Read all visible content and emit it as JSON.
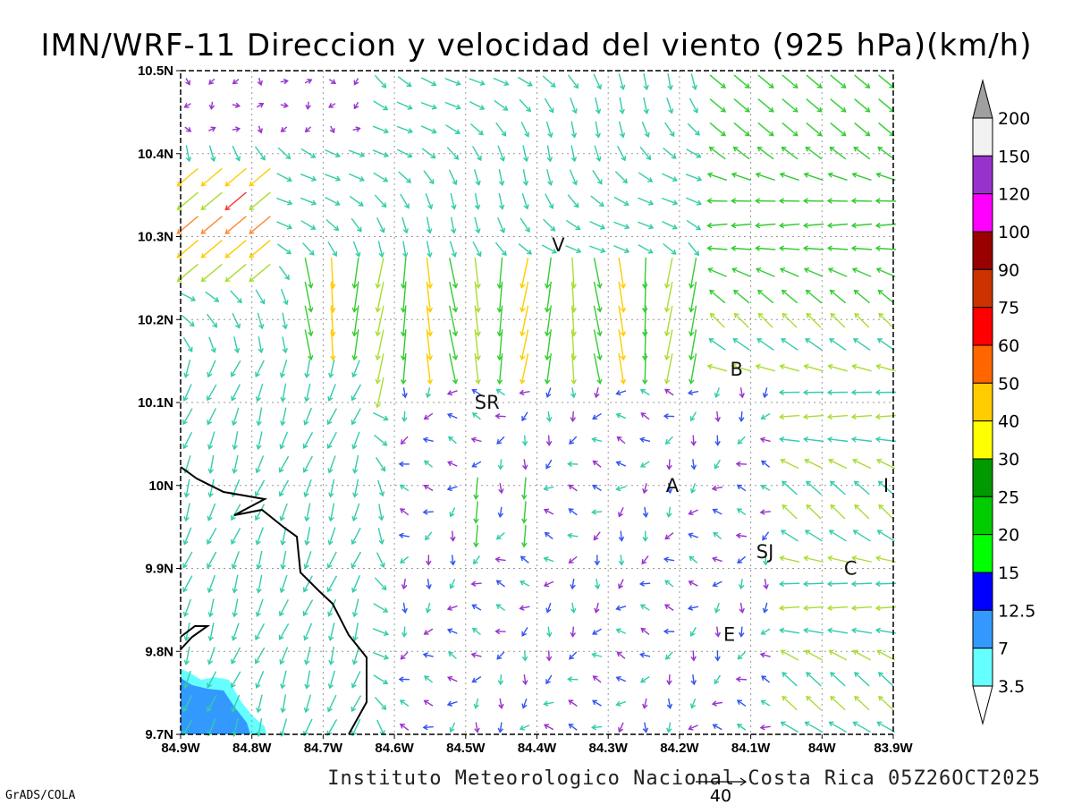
{
  "title": "IMN/WRF-11 Direccion y velocidad del viento (925 hPa)(km/h)",
  "footer": "Instituto Meteorologico Nacional Costa Rica 05Z26OCT2025",
  "credit": "GrADS/COLA",
  "reference_vector": {
    "label": "40",
    "speed": 40
  },
  "map": {
    "lon_range": [
      -84.9,
      -83.9
    ],
    "lat_range": [
      9.7,
      10.5
    ],
    "lon_ticks": [
      "84.9W",
      "84.8W",
      "84.7W",
      "84.6W",
      "84.5W",
      "84.4W",
      "84.3W",
      "84.2W",
      "84.1W",
      "84W",
      "83.9W"
    ],
    "lat_ticks": [
      "9.7N",
      "9.8N",
      "9.9N",
      "10N",
      "10.1N",
      "10.2N",
      "10.3N",
      "10.4N",
      "10.5N"
    ],
    "grid": "dotted",
    "cities": [
      {
        "label": "V",
        "lon": -84.37,
        "lat": 10.29
      },
      {
        "label": "SR",
        "lon": -84.47,
        "lat": 10.1
      },
      {
        "label": "B",
        "lon": -84.12,
        "lat": 10.14
      },
      {
        "label": "A",
        "lon": -84.21,
        "lat": 10.0
      },
      {
        "label": "I",
        "lon": -83.91,
        "lat": 10.0
      },
      {
        "label": "SJ",
        "lon": -84.08,
        "lat": 9.92
      },
      {
        "label": "C",
        "lon": -83.96,
        "lat": 9.9
      },
      {
        "label": "E",
        "lon": -84.13,
        "lat": 9.82
      }
    ]
  },
  "colorbar": {
    "labels": [
      "200",
      "150",
      "120",
      "100",
      "90",
      "75",
      "60",
      "50",
      "40",
      "30",
      "25",
      "20",
      "15",
      "12.5",
      "7",
      "3.5"
    ],
    "colors": [
      "#f2f2f2",
      "#9932cc",
      "#ff00ff",
      "#990000",
      "#cc3300",
      "#ff0000",
      "#ff6600",
      "#ffcc00",
      "#ffff00",
      "#009900",
      "#00cc00",
      "#00ff00",
      "#0000ff",
      "#3399ff",
      "#66ffff"
    ],
    "over_color": "#a0a0a0",
    "under_color": "#ffffff"
  },
  "arrow_colors": {
    "calm": "#9933cc",
    "light": "#3355ee",
    "moderate": "#33ccaa",
    "fresh": "#33cc33",
    "strong": "#aadd33",
    "very_strong": "#ffcc00",
    "gusty": "#ff8833",
    "extreme": "#ff3333"
  },
  "fill_colors": {
    "sea_light": "#66ffff",
    "sea": "#3399ff"
  }
}
